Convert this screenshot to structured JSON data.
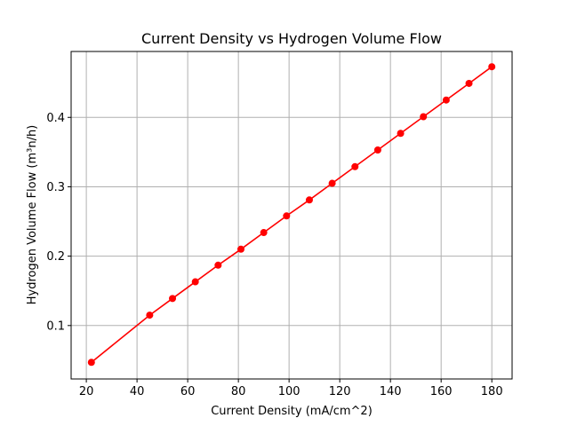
{
  "chart_data": {
    "type": "line",
    "title": "Current Density vs  Hydrogen Volume Flow",
    "xlabel": "Current Density (mA/cm^2)",
    "ylabel": "Hydrogen Volume Flow (m³n/h)",
    "xlim": [
      14,
      188
    ],
    "ylim": [
      0.023,
      0.495
    ],
    "xticks": [
      20,
      40,
      60,
      80,
      100,
      120,
      140,
      160,
      180
    ],
    "yticks": [
      0.1,
      0.2,
      0.3,
      0.4
    ],
    "xtick_labels": [
      "20",
      "40",
      "60",
      "80",
      "100",
      "120",
      "140",
      "160",
      "180"
    ],
    "ytick_labels": [
      "0.1",
      "0.2",
      "0.3",
      "0.4"
    ],
    "grid": true,
    "series": [
      {
        "name": "Hydrogen Volume Flow",
        "color": "#ff0000",
        "marker": "circle",
        "x": [
          22,
          45,
          54,
          63,
          72,
          81,
          90,
          99,
          108,
          117,
          126,
          135,
          144,
          153,
          162,
          171,
          180
        ],
        "y": [
          0.047,
          0.115,
          0.139,
          0.163,
          0.187,
          0.21,
          0.234,
          0.258,
          0.281,
          0.305,
          0.329,
          0.353,
          0.377,
          0.401,
          0.425,
          0.449,
          0.473
        ]
      }
    ]
  }
}
